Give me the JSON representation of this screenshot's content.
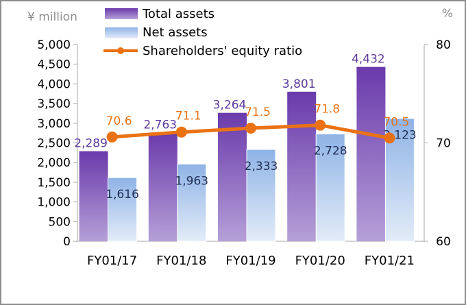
{
  "chart_data": {
    "type": "bar",
    "categories": [
      "FY01/17",
      "FY01/18",
      "FY01/19",
      "FY01/20",
      "FY01/21"
    ],
    "series": [
      {
        "name": "Total assets",
        "kind": "bar",
        "axis": "left",
        "color": "#6f45b0",
        "values": [
          2289,
          2763,
          3264,
          3801,
          4432
        ],
        "labels": [
          "2,289",
          "2,763",
          "3,264",
          "3,801",
          "4,432"
        ]
      },
      {
        "name": "Net assets",
        "kind": "bar",
        "axis": "left",
        "color": "#a9c6ec",
        "values": [
          1616,
          1963,
          2333,
          2728,
          3123
        ],
        "labels": [
          "1,616",
          "1,963",
          "2,333",
          "2,728",
          "3,123"
        ]
      },
      {
        "name": "Shareholders' equity ratio",
        "kind": "line",
        "axis": "right",
        "color": "#ea7215",
        "values": [
          70.6,
          71.1,
          71.5,
          71.8,
          70.5
        ],
        "labels": [
          "70.6",
          "71.1",
          "71.5",
          "71.8",
          "70.5"
        ]
      }
    ],
    "left_axis": {
      "unit": "¥ million",
      "range": [
        0,
        5000
      ],
      "ticks": [
        0,
        500,
        1000,
        1500,
        2000,
        2500,
        3000,
        3500,
        4000,
        4500,
        5000
      ],
      "tick_labels": [
        "0",
        "500",
        "1,000",
        "1,500",
        "2,000",
        "2,500",
        "3,000",
        "3,500",
        "4,000",
        "4,500",
        "5,000"
      ]
    },
    "right_axis": {
      "unit": "%",
      "range": [
        60,
        80
      ],
      "ticks": [
        60,
        70,
        80
      ],
      "tick_labels": [
        "60",
        "70",
        "80"
      ]
    },
    "grid": false,
    "legend": "top"
  }
}
